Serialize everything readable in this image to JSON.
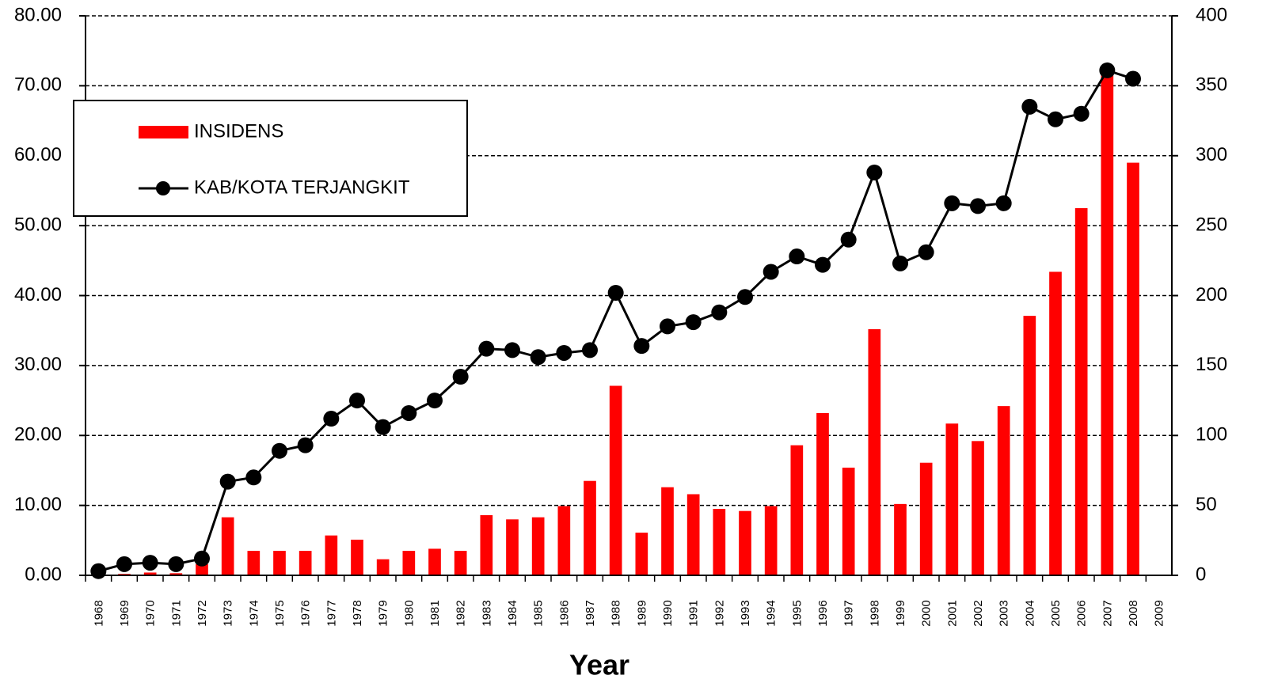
{
  "chart_data": {
    "type": "bar_line",
    "x_label": "Year",
    "categories": [
      "1968",
      "1969",
      "1970",
      "1971",
      "1972",
      "1973",
      "1974",
      "1975",
      "1976",
      "1977",
      "1978",
      "1979",
      "1980",
      "1981",
      "1982",
      "1983",
      "1984",
      "1985",
      "1986",
      "1987",
      "1988",
      "1989",
      "1990",
      "1991",
      "1992",
      "1993",
      "1994",
      "1995",
      "1996",
      "1997",
      "1998",
      "1999",
      "2000",
      "2001",
      "2002",
      "2003",
      "2004",
      "2005",
      "2006",
      "2007",
      "2008",
      "2009"
    ],
    "series": [
      {
        "name": "INSIDENS",
        "color": "#ff0000",
        "type": "bar",
        "values": [
          0.1,
          0.2,
          0.4,
          0.3,
          1.6,
          8.3,
          3.5,
          3.5,
          3.5,
          5.7,
          5.1,
          2.3,
          3.5,
          3.8,
          3.5,
          8.6,
          8.0,
          8.3,
          9.9,
          13.5,
          27.1,
          6.1,
          12.6,
          11.6,
          9.5,
          9.2,
          9.9,
          18.6,
          23.2,
          15.4,
          35.2,
          10.2,
          16.1,
          21.7,
          19.2,
          24.2,
          37.1,
          43.4,
          52.5,
          71.8,
          59.0,
          null
        ]
      },
      {
        "name": "KAB/KOTA TERJANGKIT",
        "color": "#000000",
        "type": "line",
        "axis": "y2",
        "values": [
          3,
          8,
          9,
          8,
          12,
          67,
          70,
          89,
          93,
          112,
          125,
          106,
          116,
          125,
          142,
          162,
          161,
          156,
          159,
          161,
          202,
          164,
          178,
          181,
          188,
          199,
          217,
          228,
          222,
          240,
          288,
          223,
          231,
          266,
          264,
          266,
          335,
          326,
          330,
          361,
          355,
          null
        ]
      }
    ],
    "ylim": [
      0,
      80
    ],
    "yticks": [
      {
        "value": 0,
        "label": "0.00"
      },
      {
        "value": 10,
        "label": "10.00"
      },
      {
        "value": 20,
        "label": "20.00"
      },
      {
        "value": 30,
        "label": "30.00"
      },
      {
        "value": 40,
        "label": "40.00"
      },
      {
        "value": 50,
        "label": "50.00"
      },
      {
        "value": 60,
        "label": "60.00"
      },
      {
        "value": 70,
        "label": "70.00"
      },
      {
        "value": 80,
        "label": "80.00"
      }
    ],
    "y2lim": [
      0,
      400
    ],
    "y2ticks": [
      0,
      50,
      100,
      150,
      200,
      250,
      300,
      350,
      400
    ],
    "grid": true,
    "legend": "upper left"
  }
}
